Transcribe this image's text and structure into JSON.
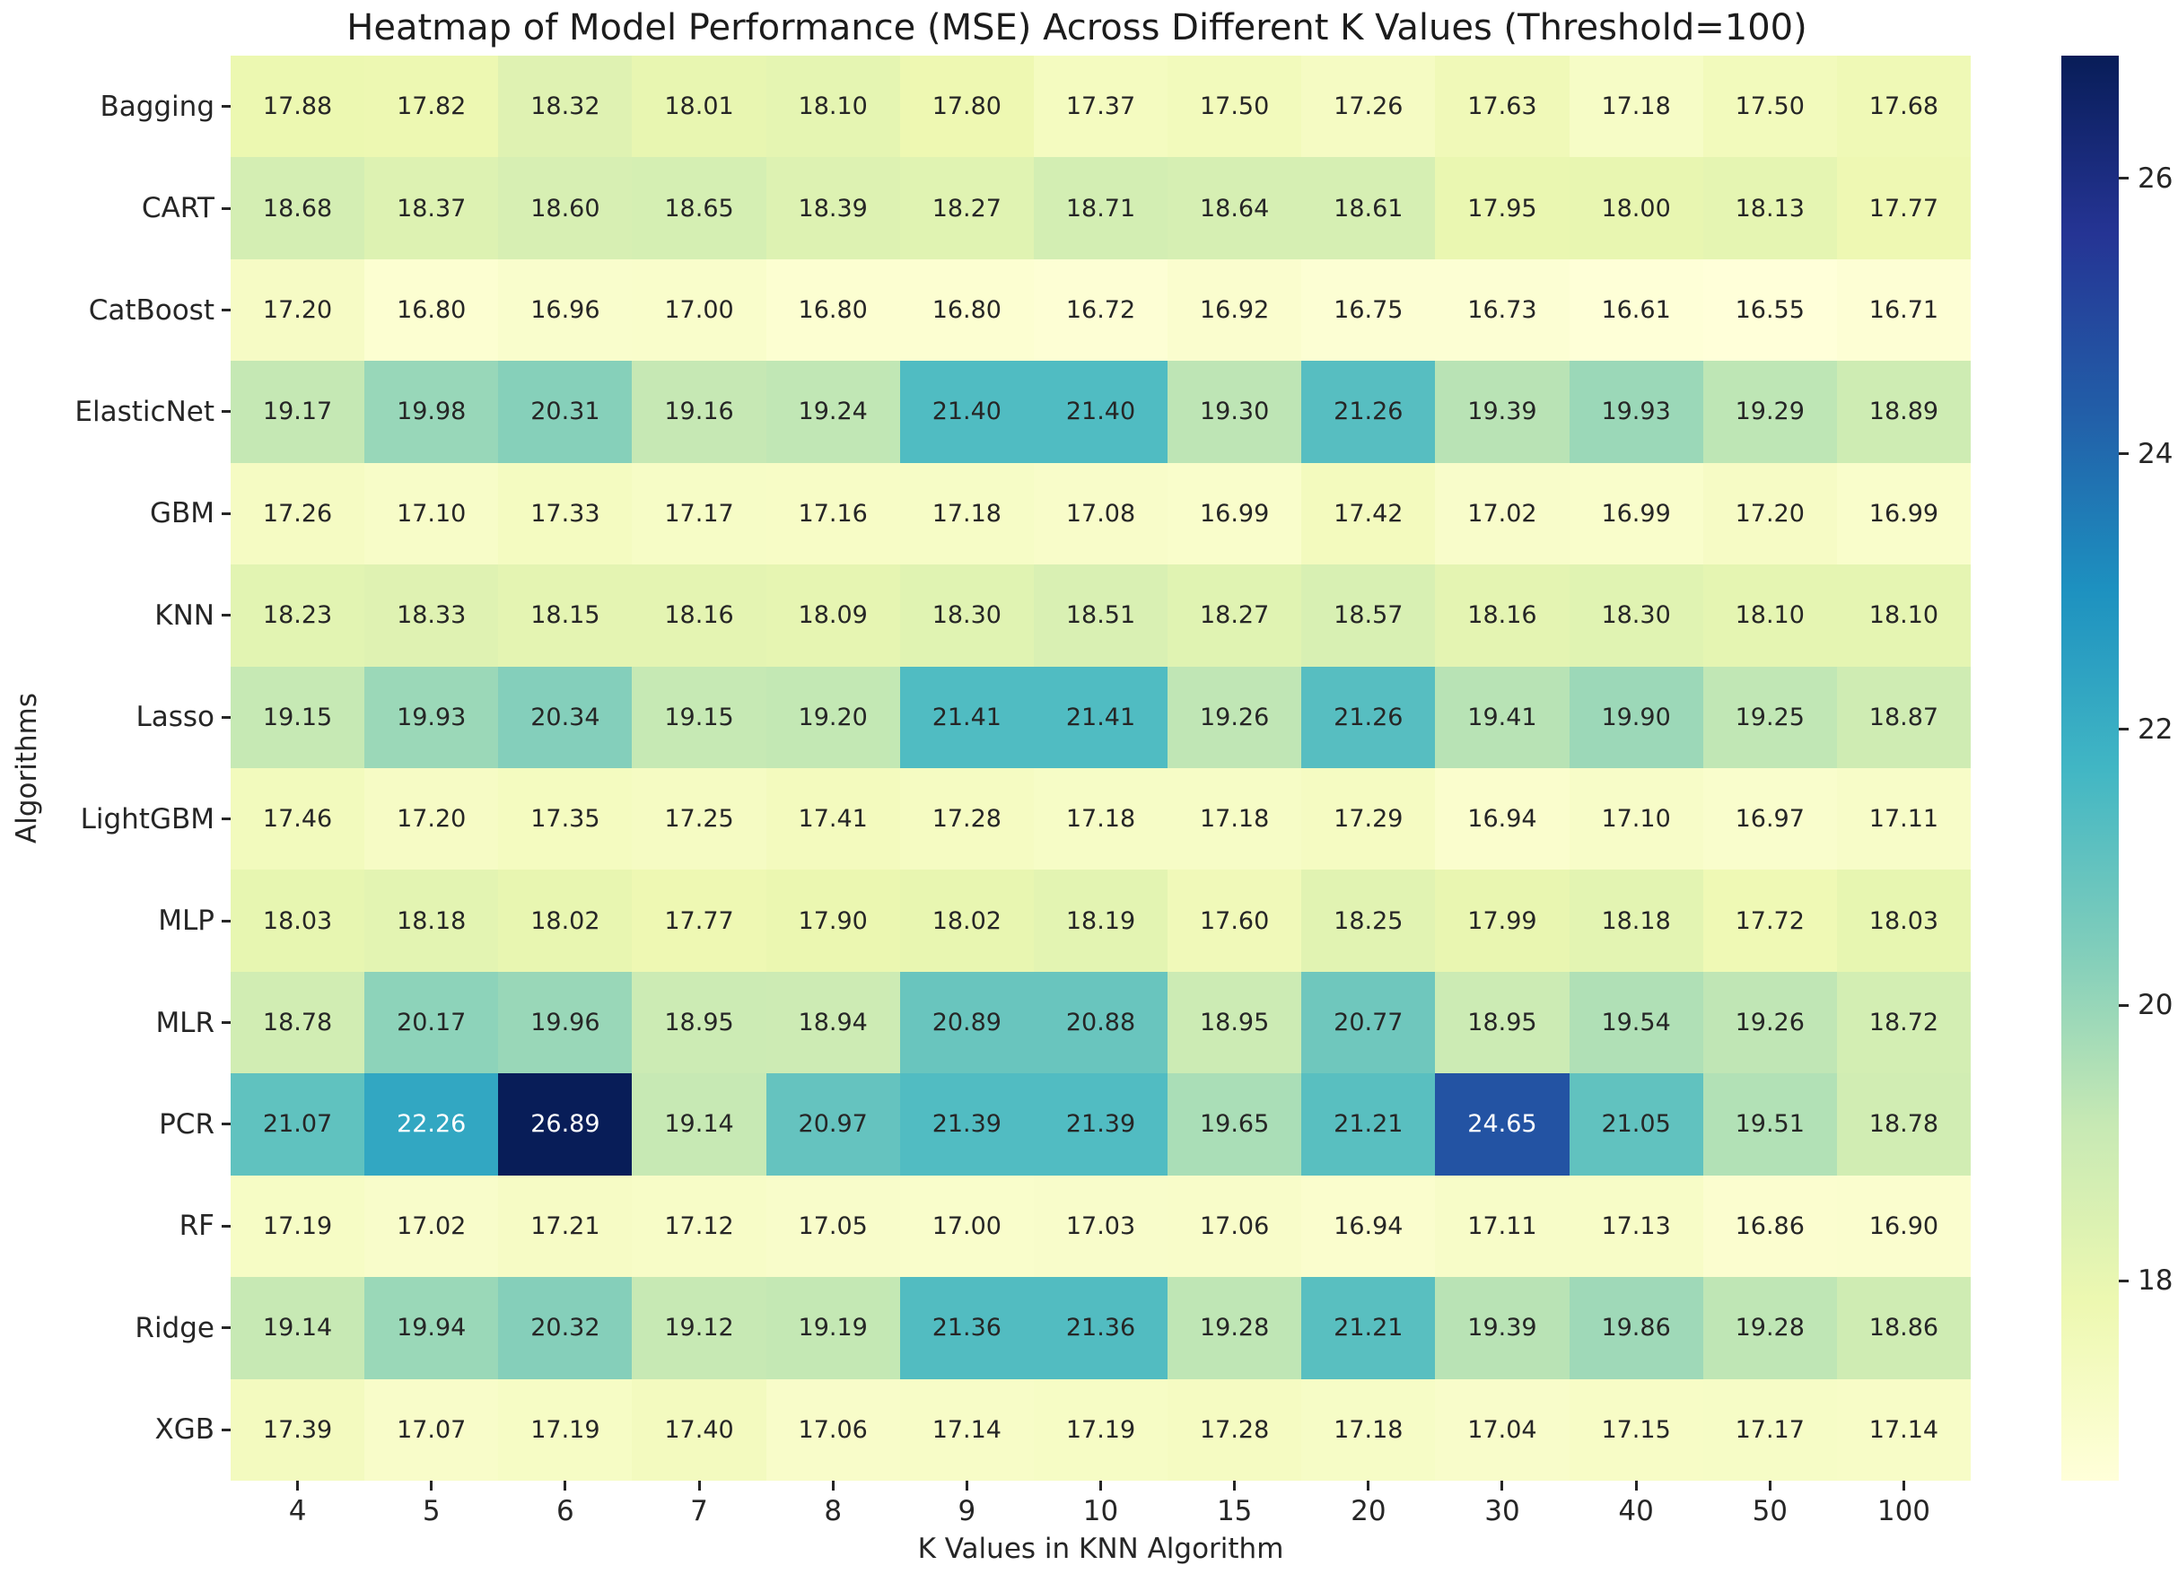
{
  "chart_data": {
    "type": "heatmap",
    "title": "Heatmap of Model Performance (MSE) Across Different K Values (Threshold=100)",
    "xlabel": "K Values in KNN Algorithm",
    "ylabel": "Algorithms",
    "x_categories": [
      "4",
      "5",
      "6",
      "7",
      "8",
      "9",
      "10",
      "15",
      "20",
      "30",
      "40",
      "50",
      "100"
    ],
    "y_categories": [
      "Bagging",
      "CART",
      "CatBoost",
      "ElasticNet",
      "GBM",
      "KNN",
      "Lasso",
      "LightGBM",
      "MLP",
      "MLR",
      "PCR",
      "RF",
      "Ridge",
      "XGB"
    ],
    "values": [
      [
        "17.88",
        "17.82",
        "18.32",
        "18.01",
        "18.10",
        "17.80",
        "17.37",
        "17.50",
        "17.26",
        "17.63",
        "17.18",
        "17.50",
        "17.68"
      ],
      [
        "18.68",
        "18.37",
        "18.60",
        "18.65",
        "18.39",
        "18.27",
        "18.71",
        "18.64",
        "18.61",
        "17.95",
        "18.00",
        "18.13",
        "17.77"
      ],
      [
        "17.20",
        "16.80",
        "16.96",
        "17.00",
        "16.80",
        "16.80",
        "16.72",
        "16.92",
        "16.75",
        "16.73",
        "16.61",
        "16.55",
        "16.71"
      ],
      [
        "19.17",
        "19.98",
        "20.31",
        "19.16",
        "19.24",
        "21.40",
        "21.40",
        "19.30",
        "21.26",
        "19.39",
        "19.93",
        "19.29",
        "18.89"
      ],
      [
        "17.26",
        "17.10",
        "17.33",
        "17.17",
        "17.16",
        "17.18",
        "17.08",
        "16.99",
        "17.42",
        "17.02",
        "16.99",
        "17.20",
        "16.99"
      ],
      [
        "18.23",
        "18.33",
        "18.15",
        "18.16",
        "18.09",
        "18.30",
        "18.51",
        "18.27",
        "18.57",
        "18.16",
        "18.30",
        "18.10",
        "18.10"
      ],
      [
        "19.15",
        "19.93",
        "20.34",
        "19.15",
        "19.20",
        "21.41",
        "21.41",
        "19.26",
        "21.26",
        "19.41",
        "19.90",
        "19.25",
        "18.87"
      ],
      [
        "17.46",
        "17.20",
        "17.35",
        "17.25",
        "17.41",
        "17.28",
        "17.18",
        "17.18",
        "17.29",
        "16.94",
        "17.10",
        "16.97",
        "17.11"
      ],
      [
        "18.03",
        "18.18",
        "18.02",
        "17.77",
        "17.90",
        "18.02",
        "18.19",
        "17.60",
        "18.25",
        "17.99",
        "18.18",
        "17.72",
        "18.03"
      ],
      [
        "18.78",
        "20.17",
        "19.96",
        "18.95",
        "18.94",
        "20.89",
        "20.88",
        "18.95",
        "20.77",
        "18.95",
        "19.54",
        "19.26",
        "18.72"
      ],
      [
        "21.07",
        "22.26",
        "26.89",
        "19.14",
        "20.97",
        "21.39",
        "21.39",
        "19.65",
        "21.21",
        "24.65",
        "21.05",
        "19.51",
        "18.78"
      ],
      [
        "17.19",
        "17.02",
        "17.21",
        "17.12",
        "17.05",
        "17.00",
        "17.03",
        "17.06",
        "16.94",
        "17.11",
        "17.13",
        "16.86",
        "16.90"
      ],
      [
        "19.14",
        "19.94",
        "20.32",
        "19.12",
        "19.19",
        "21.36",
        "21.36",
        "19.28",
        "21.21",
        "19.39",
        "19.86",
        "19.28",
        "18.86"
      ],
      [
        "17.39",
        "17.07",
        "17.19",
        "17.40",
        "17.06",
        "17.14",
        "17.19",
        "17.28",
        "17.18",
        "17.04",
        "17.15",
        "17.17",
        "17.14"
      ]
    ],
    "vmin": 16.55,
    "vmax": 26.89,
    "colormap_name": "YlGnBu",
    "colormap_stops": [
      "#ffffd9",
      "#edf8b1",
      "#c7e9b4",
      "#7fcdbb",
      "#41b6c4",
      "#1d91c0",
      "#225ea8",
      "#253494",
      "#081d58"
    ],
    "colorbar_ticks": [
      "26",
      "24",
      "22",
      "20",
      "18"
    ],
    "legend_position": "right",
    "grid": false,
    "colors": {
      "annotation_dark_text": "#262626",
      "annotation_light_text": "#ffffff",
      "axis_text": "#262626",
      "background": "#ffffff"
    }
  }
}
